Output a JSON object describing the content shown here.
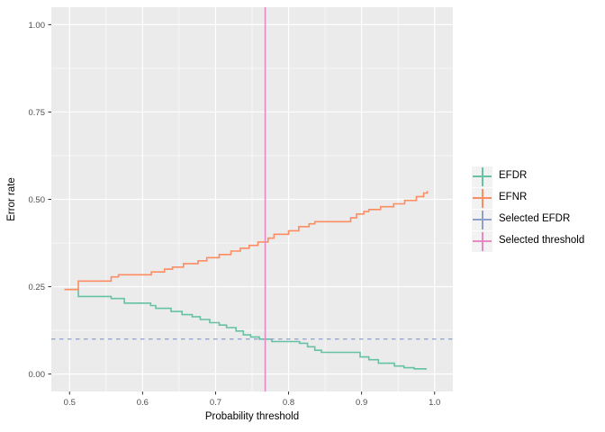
{
  "figure": {
    "bg": "#FFFFFF",
    "panel_bg": "#EBEBEB",
    "grid_color": "#FFFFFF",
    "tick_mark_color": "#333333",
    "tick_label_color": "#4D4D4D",
    "axis_title_color": "#000000",
    "legend_key_bg": "#F2F2F2"
  },
  "chart_data": {
    "type": "line",
    "title": "",
    "xlabel": "Probability threshold",
    "ylabel": "Error rate",
    "xlim": [
      0.475,
      1.025
    ],
    "ylim": [
      -0.05,
      1.05
    ],
    "x_ticks": [
      0.5,
      0.6,
      0.7,
      0.8,
      0.9,
      1.0
    ],
    "x_tick_labels": [
      "0.5",
      "0.6",
      "0.7",
      "0.8",
      "0.9",
      "1.0"
    ],
    "y_ticks": [
      0.0,
      0.25,
      0.5,
      0.75,
      1.0
    ],
    "y_tick_labels": [
      "0.00",
      "0.25",
      "0.50",
      "0.75",
      "1.00"
    ],
    "x_minor_ticks": [
      0.55,
      0.65,
      0.75,
      0.85,
      0.95
    ],
    "y_minor_ticks": [
      0.125,
      0.375,
      0.625,
      0.875
    ],
    "grid": true,
    "legend_position": "right",
    "curve_style": "step-after",
    "series": [
      {
        "name": "EFDR",
        "color": "#66C2A5",
        "points": [
          [
            0.493,
            0.242
          ],
          [
            0.512,
            0.222
          ],
          [
            0.557,
            0.216
          ],
          [
            0.575,
            0.203
          ],
          [
            0.611,
            0.196
          ],
          [
            0.618,
            0.188
          ],
          [
            0.639,
            0.179
          ],
          [
            0.654,
            0.17
          ],
          [
            0.668,
            0.164
          ],
          [
            0.679,
            0.156
          ],
          [
            0.692,
            0.147
          ],
          [
            0.705,
            0.14
          ],
          [
            0.715,
            0.133
          ],
          [
            0.728,
            0.123
          ],
          [
            0.738,
            0.112
          ],
          [
            0.748,
            0.106
          ],
          [
            0.76,
            0.1
          ],
          [
            0.777,
            0.093
          ],
          [
            0.815,
            0.088
          ],
          [
            0.826,
            0.078
          ],
          [
            0.836,
            0.068
          ],
          [
            0.845,
            0.062
          ],
          [
            0.898,
            0.049
          ],
          [
            0.91,
            0.041
          ],
          [
            0.923,
            0.031
          ],
          [
            0.945,
            0.023
          ],
          [
            0.958,
            0.018
          ],
          [
            0.972,
            0.015
          ],
          [
            0.988,
            0.012
          ]
        ]
      },
      {
        "name": "EFNR",
        "color": "#FC8D62",
        "points": [
          [
            0.493,
            0.242
          ],
          [
            0.512,
            0.266
          ],
          [
            0.557,
            0.278
          ],
          [
            0.567,
            0.284
          ],
          [
            0.612,
            0.292
          ],
          [
            0.63,
            0.3
          ],
          [
            0.641,
            0.306
          ],
          [
            0.656,
            0.316
          ],
          [
            0.676,
            0.324
          ],
          [
            0.688,
            0.333
          ],
          [
            0.705,
            0.342
          ],
          [
            0.721,
            0.352
          ],
          [
            0.734,
            0.36
          ],
          [
            0.746,
            0.368
          ],
          [
            0.758,
            0.378
          ],
          [
            0.772,
            0.389
          ],
          [
            0.78,
            0.4
          ],
          [
            0.8,
            0.41
          ],
          [
            0.814,
            0.422
          ],
          [
            0.828,
            0.43
          ],
          [
            0.836,
            0.436
          ],
          [
            0.885,
            0.447
          ],
          [
            0.893,
            0.458
          ],
          [
            0.903,
            0.465
          ],
          [
            0.91,
            0.471
          ],
          [
            0.926,
            0.479
          ],
          [
            0.944,
            0.487
          ],
          [
            0.959,
            0.497
          ],
          [
            0.975,
            0.508
          ],
          [
            0.985,
            0.518
          ],
          [
            0.99,
            0.524
          ]
        ]
      }
    ],
    "hline": {
      "name": "Selected EFDR",
      "color": "#8DA0CB",
      "y": 0.1,
      "dash": [
        4.5,
        4.5
      ]
    },
    "vline": {
      "name": "Selected threshold",
      "color": "#E78AC3",
      "x": 0.768
    }
  },
  "legend": {
    "items": [
      {
        "label": "EFDR",
        "color": "#66C2A5"
      },
      {
        "label": "EFNR",
        "color": "#FC8D62"
      },
      {
        "label": "Selected EFDR",
        "color": "#8DA0CB"
      },
      {
        "label": "Selected threshold",
        "color": "#E78AC3"
      }
    ]
  }
}
